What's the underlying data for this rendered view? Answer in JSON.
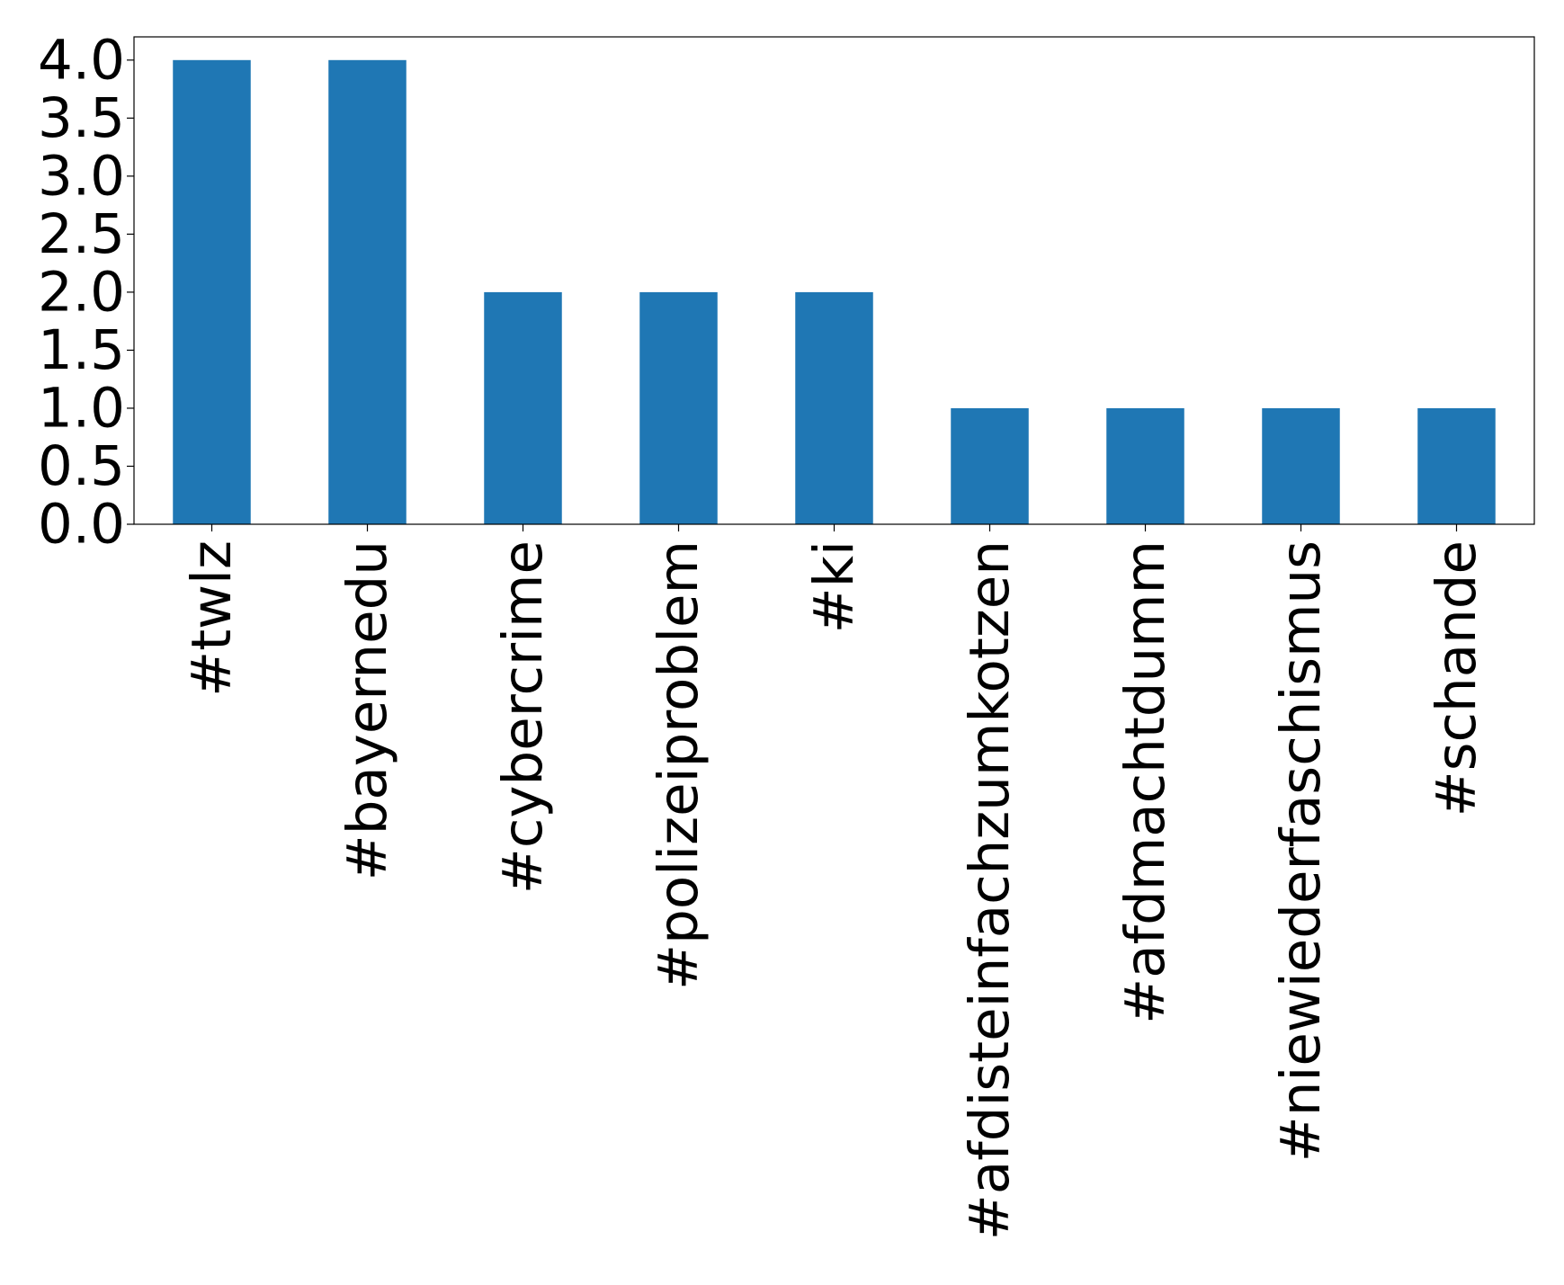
{
  "chart_data": {
    "type": "bar",
    "title": "",
    "xlabel": "",
    "ylabel": "",
    "categories": [
      "#twlz",
      "#bayernedu",
      "#cybercrime",
      "#polizeiproblem",
      "#ki",
      "#afdisteinfachzumkotzen",
      "#afdmachtdumm",
      "#niewiederfaschismus",
      "#schande"
    ],
    "values": [
      4,
      4,
      2,
      2,
      2,
      1,
      1,
      1,
      1
    ],
    "ylim": [
      0,
      4.2
    ],
    "yticks": [
      0.0,
      0.5,
      1.0,
      1.5,
      2.0,
      2.5,
      3.0,
      3.5,
      4.0
    ],
    "ytick_labels": [
      "0.0",
      "0.5",
      "1.0",
      "1.5",
      "2.0",
      "2.5",
      "3.0",
      "3.5",
      "4.0"
    ],
    "bar_color": "#1f77b4",
    "grid": false,
    "legend": false
  }
}
